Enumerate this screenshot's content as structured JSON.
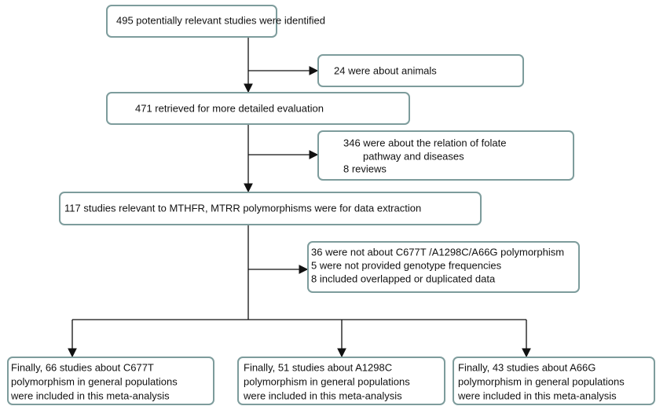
{
  "nodes": [
    {
      "lines": [
        "495 potentially relevant  studies were identified"
      ]
    },
    {
      "lines": [
        "24 were about animals"
      ]
    },
    {
      "lines": [
        "471 retrieved for more detailed evaluation"
      ]
    },
    {
      "lines": [
        "346 were about the relation of folate",
        "pathway and diseases",
        "8 reviews"
      ]
    },
    {
      "lines": [
        "117 studies relevant to MTHFR, MTRR polymorphisms were for data extraction"
      ]
    },
    {
      "lines": [
        "36 were not about C677T /A1298C/A66G polymorphism",
        "5 were not provided genotype frequencies",
        "8 included overlapped or duplicated  data"
      ]
    },
    {
      "lines": [
        "Finally, 66 studies about C677T",
        "polymorphism  in general populations",
        "were included in this meta-analysis"
      ]
    },
    {
      "lines": [
        "Finally, 51 studies about A1298C",
        "polymorphism  in general populations",
        "were included in this meta-analysis"
      ]
    },
    {
      "lines": [
        "Finally, 43 studies about A66G",
        "polymorphism  in general populations",
        "were included in this meta-analysis"
      ]
    }
  ]
}
